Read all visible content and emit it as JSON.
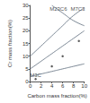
{
  "chart_data": {
    "type": "line",
    "x_label": "Carbon mass fraction(%)",
    "y_label": "Cr mass fraction(%)",
    "xlim": [
      0,
      10
    ],
    "xticks": [
      0,
      2,
      4,
      6,
      8,
      10
    ],
    "ylim": [
      0,
      30
    ],
    "yticks": [
      0,
      5,
      10,
      15,
      20,
      25,
      30
    ],
    "grid": false,
    "series": [
      {
        "color": "#5a6a7a",
        "line_style": "solid",
        "x": [
          0,
          2,
          4,
          6,
          8,
          10
        ],
        "values": [
          2,
          3,
          4,
          5,
          6,
          7
        ]
      },
      {
        "color": "#5a6a7a",
        "line_style": "solid",
        "x": [
          0,
          2,
          4,
          6,
          8,
          10
        ],
        "values": [
          5,
          8,
          11,
          14,
          17,
          20
        ]
      },
      {
        "color": "#5a6a7a",
        "line_style": "solid",
        "x": [
          0,
          2,
          4,
          6,
          8,
          10
        ],
        "values": [
          10,
          14,
          18,
          22,
          26,
          29
        ]
      },
      {
        "color": "#5a6a7a",
        "line_style": "solid",
        "x": [
          4,
          6,
          8,
          10
        ],
        "values": [
          30,
          27,
          24,
          22
        ]
      }
    ],
    "points": {
      "color": "#333333",
      "marker": "circle",
      "x": [
        1,
        4,
        6,
        9
      ],
      "values": [
        1,
        6,
        10,
        16
      ]
    },
    "annotations": [
      {
        "text": "M3C",
        "x": 1,
        "y": 2.5
      },
      {
        "text": "M23C6",
        "x": 5.2,
        "y": 28.5
      },
      {
        "text": "M7C3",
        "x": 8.8,
        "y": 28.5
      }
    ]
  }
}
